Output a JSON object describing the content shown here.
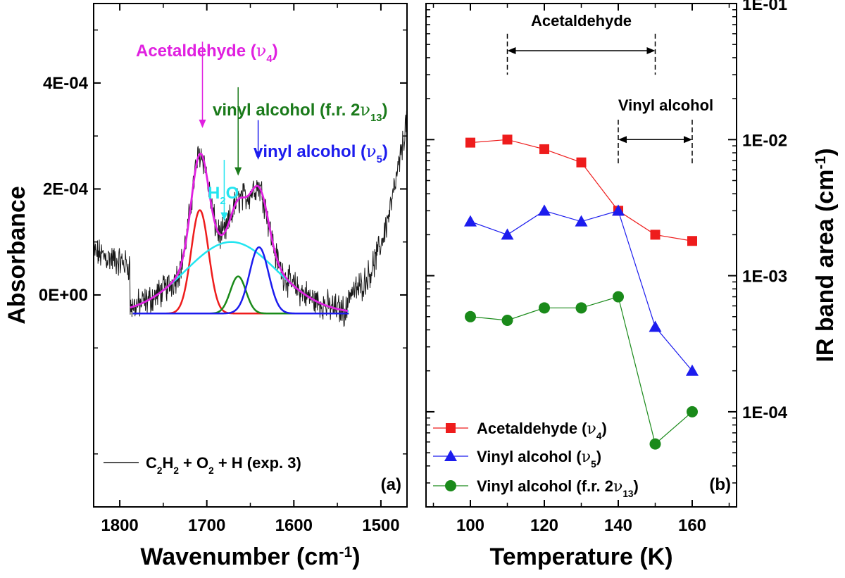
{
  "chart_data": [
    {
      "type": "line",
      "panel_label": "(a)",
      "xlabel": "Wavenumber (cm",
      "xlabel_sup": "-1",
      "xlabel_close": ")",
      "ylabel": "Absorbance",
      "xlim": [
        1830,
        1470
      ],
      "ylim": [
        -0.0004,
        0.00055
      ],
      "x_ticks": [
        {
          "value": 1800,
          "label": "1800"
        },
        {
          "value": 1700,
          "label": "1700"
        },
        {
          "value": 1600,
          "label": "1600"
        },
        {
          "value": 1500,
          "label": "1500"
        }
      ],
      "y_ticks": [
        {
          "value": 0,
          "label": "0E+00"
        },
        {
          "value": 0.0002,
          "label": "2E-04"
        },
        {
          "value": 0.0004,
          "label": "4E-04"
        }
      ],
      "baseline": -3.5e-05,
      "components": [
        {
          "name": "Acetaldehyde",
          "color": "#ee1c1c",
          "center": 1708,
          "width": 10,
          "amplitude": 0.000195
        },
        {
          "name": "H2O",
          "color": "#22e5f0",
          "center": 1672,
          "width": 52,
          "amplitude": 0.000135
        },
        {
          "name": "vinyl alcohol f.r.",
          "color": "#1a8a1a",
          "center": 1664,
          "width": 9,
          "amplitude": 7e-05
        },
        {
          "name": "vinyl alcohol v5",
          "color": "#1c1cee",
          "center": 1640,
          "width": 11,
          "amplitude": 0.000125
        }
      ],
      "fit_color": "#e020e0",
      "fit_range": [
        1788,
        1538
      ],
      "component_range": [
        1785,
        1537
      ],
      "spectrum_color": "#1a1a1a",
      "legend": {
        "formula_parts": [
          "C",
          "2",
          "H",
          "2",
          " + O",
          "2",
          " + H (exp. 3)"
        ]
      },
      "annotations": [
        {
          "id": "acetaldehyde",
          "text": "Acetaldehyde (",
          "nu": "ν",
          "sub": "4",
          "close": ")",
          "color": "#e020e0",
          "arrow_x": 1705,
          "arrow_top": 0.000478,
          "arrow_bottom": 0.000315
        },
        {
          "id": "h2o",
          "text": "H",
          "sub": "2",
          "after": "O",
          "color": "#22e5f0",
          "arrow_x": 1680,
          "arrow_top": 0.000255,
          "arrow_bottom": 0.00014
        },
        {
          "id": "vinyl-fr",
          "text": "vinyl alcohol (f.r. 2",
          "nu": "ν",
          "sub": "13",
          "close": ")",
          "color": "#1a7a1a",
          "arrow_x": 1664,
          "arrow_top": 0.000392,
          "arrow_bottom": 0.000225
        },
        {
          "id": "vinyl-v5",
          "text": "vinyl alcohol (",
          "nu": "ν",
          "sub": "5",
          "close": ")",
          "color": "#1c1cee",
          "arrow_x": 1641,
          "arrow_top": 0.00033,
          "arrow_bottom": 0.000255
        }
      ]
    },
    {
      "type": "line",
      "scale": "log",
      "panel_label": "(b)",
      "xlabel": "Temperature (K)",
      "ylabel": "IR band area (cm",
      "ylabel_sup": "-1",
      "ylabel_close": ")",
      "xlim": [
        88,
        172
      ],
      "ylim": [
        2e-05,
        0.1
      ],
      "x_ticks": [
        {
          "value": 100,
          "label": "100"
        },
        {
          "value": 120,
          "label": "120"
        },
        {
          "value": 140,
          "label": "140"
        },
        {
          "value": 160,
          "label": "160"
        }
      ],
      "y_ticks": [
        {
          "value": 0.0001,
          "label": "1E-04"
        },
        {
          "value": 0.001,
          "label": "1E-03"
        },
        {
          "value": 0.01,
          "label": "1E-02"
        },
        {
          "value": 0.1,
          "label": "1E-01"
        }
      ],
      "x": [
        100,
        110,
        120,
        130,
        140,
        150,
        160
      ],
      "series": [
        {
          "name": "Acetaldehyde",
          "nu": "ν",
          "sub": "4",
          "marker": "square",
          "color": "#ee1c1c",
          "values": [
            0.0095,
            0.01,
            0.0085,
            0.0068,
            0.003,
            0.002,
            0.0018
          ]
        },
        {
          "name": "Vinyl alcohol",
          "nu": "ν",
          "sub": "5",
          "marker": "triangle",
          "color": "#1c1cee",
          "values": [
            0.0025,
            0.002,
            0.003,
            0.0025,
            0.003,
            0.00042,
            0.0002
          ]
        },
        {
          "name": "Vinyl alcohol (f.r. 2",
          "nu": "ν",
          "sub": "13",
          "marker": "circle",
          "color": "#1a8a1a",
          "values": [
            0.0005,
            0.00047,
            0.00058,
            0.00058,
            0.0007,
            5.8e-05,
            0.0001
          ]
        }
      ],
      "ranges": [
        {
          "label": "Acetaldehyde",
          "from": 110,
          "to": 150,
          "y": 0.045,
          "label_y": 0.075,
          "tick_top": 0.06,
          "tick_bottom": 0.03
        },
        {
          "label": "Vinyl alcohol",
          "from": 140,
          "to": 160,
          "y": 0.01,
          "label_y": 0.018,
          "tick_top": 0.014,
          "tick_bottom": 0.0065
        }
      ]
    }
  ]
}
